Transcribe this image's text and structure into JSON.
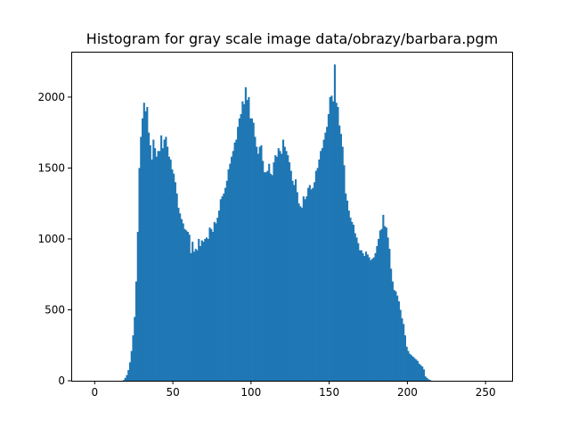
{
  "chart_data": {
    "type": "bar",
    "title": "Histogram for gray scale image data/obrazy/barbara.pgm",
    "xlabel": "",
    "ylabel": "",
    "xlim": [
      -15,
      267
    ],
    "ylim": [
      0,
      2320
    ],
    "xticks": [
      0,
      50,
      100,
      150,
      200,
      250
    ],
    "yticks": [
      0,
      500,
      1000,
      1500,
      2000
    ],
    "grid": false,
    "bar_color": "#1f77b4",
    "bin_width": 1,
    "x_start": 0,
    "values": [
      0,
      0,
      0,
      0,
      0,
      0,
      0,
      0,
      0,
      0,
      0,
      0,
      0,
      0,
      0,
      0,
      0,
      0,
      5,
      20,
      40,
      75,
      130,
      210,
      320,
      450,
      700,
      1050,
      1500,
      1720,
      1850,
      1960,
      1900,
      1930,
      1750,
      1660,
      1560,
      1700,
      1640,
      1580,
      1620,
      1620,
      1730,
      1640,
      1700,
      1720,
      1650,
      1580,
      1560,
      1490,
      1460,
      1400,
      1320,
      1220,
      1180,
      1140,
      1110,
      1070,
      1060,
      1050,
      1030,
      900,
      980,
      910,
      930,
      920,
      1000,
      950,
      990,
      980,
      1000,
      1010,
      1000,
      1080,
      1070,
      1050,
      1120,
      1110,
      1150,
      1200,
      1280,
      1300,
      1320,
      1360,
      1410,
      1490,
      1530,
      1580,
      1620,
      1680,
      1700,
      1790,
      1850,
      1880,
      1970,
      1950,
      2070,
      1980,
      2000,
      1850,
      1850,
      1820,
      1720,
      1650,
      1600,
      1650,
      1660,
      1550,
      1470,
      1470,
      1480,
      1530,
      1460,
      1450,
      1540,
      1590,
      1580,
      1640,
      1620,
      1600,
      1700,
      1650,
      1620,
      1590,
      1540,
      1480,
      1410,
      1380,
      1420,
      1330,
      1250,
      1230,
      1220,
      1300,
      1280,
      1300,
      1360,
      1380,
      1350,
      1360,
      1400,
      1480,
      1500,
      1560,
      1620,
      1640,
      1700,
      1750,
      1790,
      1880,
      2000,
      2010,
      1970,
      2230,
      1960,
      1930,
      1800,
      1740,
      1650,
      1520,
      1320,
      1270,
      1200,
      1150,
      1120,
      1100,
      1040,
      1010,
      970,
      920,
      920,
      900,
      880,
      910,
      890,
      870,
      850,
      860,
      870,
      900,
      950,
      1000,
      1060,
      1070,
      1170,
      1090,
      1080,
      1010,
      930,
      790,
      700,
      640,
      630,
      600,
      560,
      500,
      440,
      400,
      320,
      240,
      210,
      190,
      180,
      170,
      160,
      150,
      140,
      120,
      110,
      100,
      80,
      30,
      20,
      10,
      5,
      0,
      0,
      0,
      0,
      0,
      0,
      0,
      0,
      0,
      0,
      0,
      0,
      0,
      0,
      0,
      0,
      0,
      0,
      0,
      0,
      0
    ]
  }
}
